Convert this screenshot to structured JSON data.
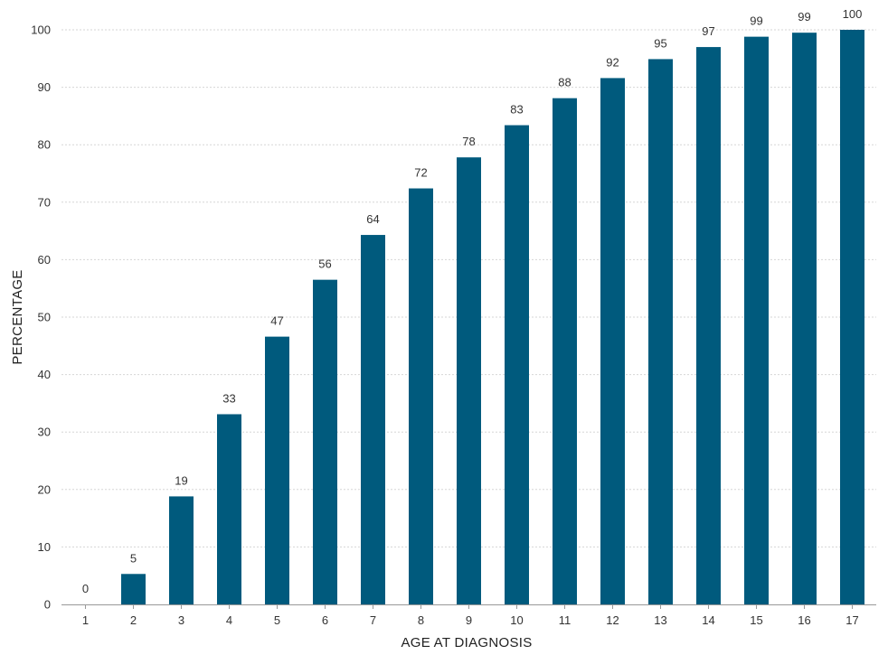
{
  "chart_data": {
    "type": "bar",
    "xlabel": "AGE AT DIAGNOSIS",
    "ylabel": "PERCENTAGE",
    "categories": [
      "1",
      "2",
      "3",
      "4",
      "5",
      "6",
      "7",
      "8",
      "9",
      "10",
      "11",
      "12",
      "13",
      "14",
      "15",
      "16",
      "17"
    ],
    "values": [
      0,
      5.3,
      18.8,
      33.1,
      46.6,
      56.5,
      64.3,
      72.4,
      77.8,
      83.4,
      88.1,
      91.6,
      94.9,
      97.0,
      98.8,
      99.5,
      100
    ],
    "data_labels": [
      "0",
      "5",
      "19",
      "33",
      "47",
      "56",
      "64",
      "72",
      "78",
      "83",
      "88",
      "92",
      "95",
      "97",
      "99",
      "99",
      "100"
    ],
    "ylim": [
      0,
      100
    ],
    "yticks": [
      "0",
      "10",
      "20",
      "30",
      "40",
      "50",
      "60",
      "70",
      "80",
      "90",
      "100"
    ],
    "grid": true,
    "legend": "none",
    "colors": {
      "bar": "#005a7d",
      "grid": "#d6d6d6",
      "axis": "#999999"
    }
  }
}
